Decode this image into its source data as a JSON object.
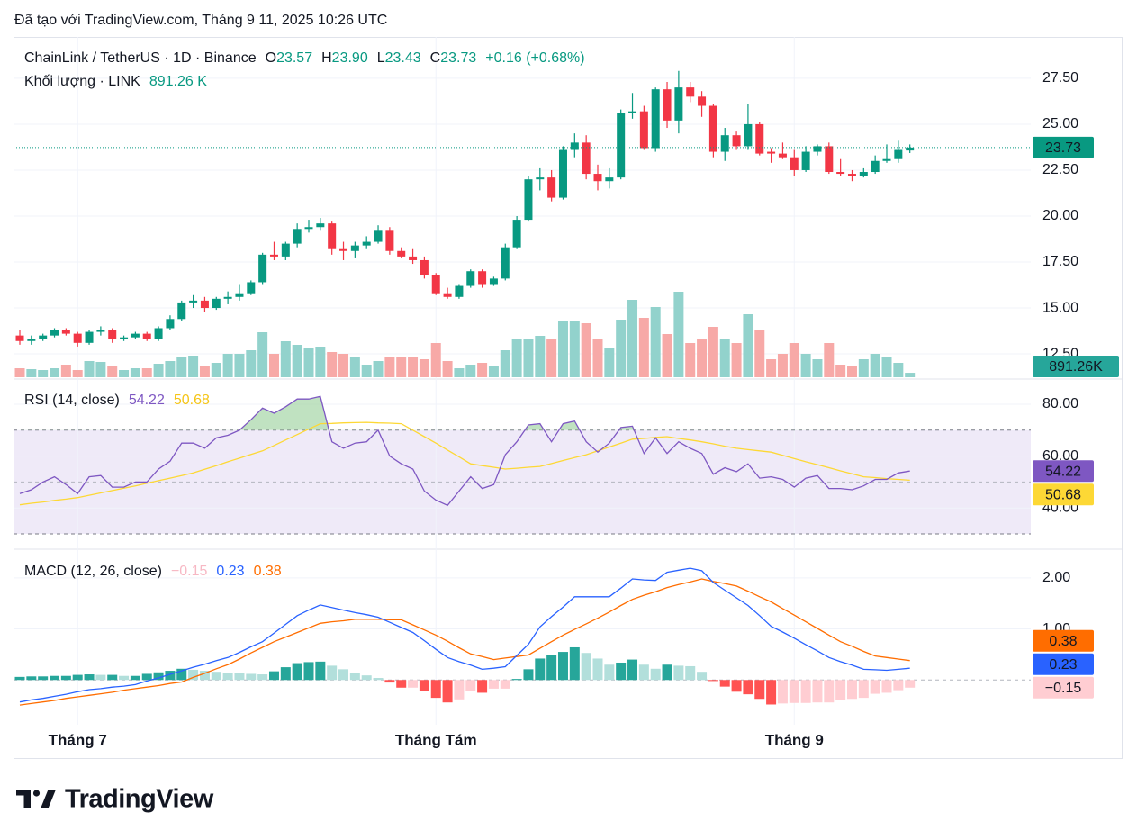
{
  "header": {
    "text": "Đã tạo với TradingView.com, Tháng 9 11, 2025 10:26 UTC"
  },
  "footer": {
    "logo": "TradingView"
  },
  "chart_data": {
    "type": "candlestick",
    "symbol": "ChainLink / TetherUS · 1D · Binance",
    "ohlc_letters": [
      "O",
      "H",
      "L",
      "C"
    ],
    "legend": {
      "open": "23.57",
      "high": "23.90",
      "low": "23.43",
      "close": "23.73",
      "change": "+0.16 (+0.68%)"
    },
    "categories": [
      null,
      null,
      null,
      null,
      null,
      "Tháng 7",
      null,
      null,
      null,
      null,
      null,
      null,
      null,
      null,
      null,
      null,
      null,
      null,
      null,
      null,
      null,
      null,
      null,
      null,
      null,
      null,
      null,
      null,
      null,
      null,
      null,
      null,
      null,
      null,
      null,
      null,
      "Tháng Tám",
      null,
      null,
      null,
      null,
      null,
      null,
      null,
      null,
      null,
      null,
      null,
      null,
      null,
      null,
      null,
      null,
      null,
      null,
      null,
      null,
      null,
      null,
      null,
      null,
      null,
      null,
      null,
      null,
      null,
      null,
      "Tháng 9",
      null,
      null,
      null,
      null,
      null,
      null,
      null,
      null,
      null,
      null
    ],
    "open": [
      13.5,
      13.2,
      13.3,
      13.5,
      13.8,
      13.6,
      13.1,
      13.7,
      13.8,
      13.3,
      13.4,
      13.6,
      13.3,
      13.9,
      14.4,
      15.3,
      15.4,
      15.0,
      15.5,
      15.6,
      15.8,
      16.4,
      17.9,
      17.8,
      18.5,
      19.3,
      19.4,
      19.6,
      18.2,
      18.1,
      18.4,
      18.6,
      19.2,
      18.1,
      17.8,
      17.6,
      16.8,
      15.8,
      15.6,
      16.2,
      17.0,
      16.3,
      16.6,
      18.3,
      19.8,
      22.0,
      22.1,
      21.0,
      23.6,
      24.0,
      22.3,
      21.9,
      22.1,
      25.6,
      25.7,
      23.7,
      26.9,
      25.2,
      27.0,
      26.5,
      26.0,
      23.5,
      24.4,
      23.8,
      25.0,
      23.5,
      23.4,
      23.2,
      22.5,
      23.5,
      23.8,
      22.4,
      22.3,
      22.2,
      22.4,
      23.0,
      23.1,
      23.57
    ],
    "high": [
      13.8,
      13.5,
      13.6,
      13.9,
      13.9,
      13.7,
      13.8,
      14.0,
      13.9,
      13.5,
      13.7,
      13.7,
      14.0,
      14.6,
      15.4,
      15.7,
      15.6,
      15.6,
      15.9,
      16.3,
      16.5,
      18.0,
      18.6,
      18.6,
      19.6,
      19.8,
      19.9,
      19.7,
      18.6,
      18.6,
      18.9,
      19.5,
      19.4,
      18.3,
      18.2,
      17.8,
      16.9,
      16.1,
      16.3,
      17.1,
      17.1,
      16.7,
      18.5,
      20.0,
      22.2,
      22.6,
      22.5,
      23.8,
      24.5,
      24.4,
      22.8,
      22.6,
      25.8,
      26.7,
      26.0,
      27.0,
      27.3,
      27.9,
      27.3,
      26.8,
      26.1,
      24.8,
      24.6,
      26.1,
      25.1,
      23.7,
      24.0,
      23.6,
      23.8,
      23.9,
      24.0,
      23.1,
      22.5,
      22.6,
      23.3,
      23.9,
      24.1,
      23.9
    ],
    "low": [
      13.0,
      13.0,
      13.2,
      13.4,
      13.5,
      12.9,
      13.0,
      13.5,
      13.1,
      13.2,
      13.3,
      13.2,
      13.2,
      13.8,
      14.3,
      15.0,
      14.8,
      14.9,
      15.2,
      15.4,
      15.7,
      16.3,
      17.6,
      17.6,
      18.3,
      19.1,
      19.2,
      17.9,
      17.6,
      17.7,
      18.2,
      18.5,
      17.9,
      17.7,
      17.4,
      16.6,
      15.7,
      15.5,
      15.5,
      16.1,
      16.1,
      16.2,
      16.5,
      18.2,
      19.7,
      21.4,
      20.8,
      20.9,
      23.2,
      22.0,
      21.4,
      21.5,
      22.0,
      25.3,
      23.6,
      23.5,
      24.8,
      24.5,
      26.2,
      25.4,
      23.2,
      23.0,
      23.6,
      23.6,
      23.3,
      22.9,
      23.1,
      22.2,
      22.4,
      23.3,
      22.3,
      22.2,
      21.9,
      22.1,
      22.3,
      22.9,
      22.9,
      23.43
    ],
    "close": [
      13.2,
      13.3,
      13.5,
      13.8,
      13.6,
      13.1,
      13.7,
      13.8,
      13.3,
      13.4,
      13.6,
      13.3,
      13.9,
      14.4,
      15.3,
      15.4,
      15.0,
      15.5,
      15.6,
      15.8,
      16.4,
      17.9,
      17.8,
      18.5,
      19.3,
      19.4,
      19.6,
      18.2,
      18.1,
      18.4,
      18.6,
      19.2,
      18.1,
      17.8,
      17.6,
      16.8,
      15.8,
      15.6,
      16.2,
      17.0,
      16.3,
      16.6,
      18.3,
      19.8,
      22.0,
      22.1,
      21.0,
      23.6,
      24.0,
      22.3,
      21.9,
      22.1,
      25.6,
      25.7,
      23.7,
      26.9,
      25.2,
      27.0,
      26.5,
      26.0,
      23.5,
      24.4,
      23.8,
      25.0,
      23.4,
      23.4,
      23.2,
      22.5,
      23.5,
      23.8,
      22.4,
      22.3,
      22.2,
      22.4,
      23.0,
      23.1,
      23.6,
      23.73
    ],
    "up_color": "#089981",
    "down_color": "#f23645",
    "ylim": [
      11.18,
      29.75
    ],
    "yticks": [
      {
        "value": 12.5,
        "label": "12.50"
      },
      {
        "value": 15,
        "label": "15.00"
      },
      {
        "value": 17.5,
        "label": "17.50"
      },
      {
        "value": 20,
        "label": "20.00"
      },
      {
        "value": 22.5,
        "label": "22.50"
      },
      {
        "value": 25,
        "label": "25.00"
      },
      {
        "value": 27.5,
        "label": "27.50"
      }
    ],
    "grid": true,
    "last_price_line": true,
    "volume": {
      "title": "Khối lượng · LINK",
      "legend_label": "891.26 K",
      "badge_label": "891.26K",
      "values": [
        1800000,
        1620000,
        1440000,
        1800000,
        2520000,
        1440000,
        3240000,
        3060000,
        2160000,
        1440000,
        1800000,
        1800000,
        2700000,
        3240000,
        3960000,
        4320000,
        2160000,
        2880000,
        4680000,
        4680000,
        5400000,
        9000000,
        4680000,
        7200000,
        6480000,
        5760000,
        6120000,
        5040000,
        4680000,
        3960000,
        2520000,
        3240000,
        3960000,
        3960000,
        3960000,
        3600000,
        6840000,
        3240000,
        1800000,
        2520000,
        2880000,
        2160000,
        5400000,
        7560000,
        7560000,
        8280000,
        7560000,
        11160000,
        11160000,
        10800000,
        7560000,
        5760000,
        11520000,
        15480000,
        11880000,
        14040000,
        8640000,
        17100000,
        6840000,
        7560000,
        10080000,
        7560000,
        6840000,
        12600000,
        9360000,
        3600000,
        4680000,
        6840000,
        4680000,
        3600000,
        6840000,
        2520000,
        2160000,
        3600000,
        4680000,
        3960000,
        2880000,
        891260
      ],
      "up_color": "#92d2cc",
      "down_color": "#f7a9a7",
      "badge_color": "#26a69a"
    },
    "rsi": {
      "title": "RSI (14, close)",
      "values": [
        45.5,
        47,
        50,
        52,
        49,
        45.5,
        52,
        52.5,
        48,
        48,
        50,
        50,
        55,
        58,
        65,
        65,
        63,
        67,
        68,
        70,
        74,
        78.5,
        76.5,
        79,
        82,
        82,
        83,
        65.5,
        63,
        65,
        65.5,
        70,
        60,
        57,
        55,
        46.5,
        43,
        41,
        46.5,
        52,
        47.5,
        49,
        60.5,
        65.5,
        72,
        72.5,
        65.5,
        72.5,
        73.5,
        65.5,
        61.5,
        65,
        71,
        71.5,
        61,
        67,
        61,
        65.5,
        63,
        61,
        53,
        55.5,
        54,
        57,
        51.5,
        52,
        51,
        48,
        51.5,
        52.5,
        47.5,
        47.5,
        47,
        48.5,
        51,
        51,
        53.5,
        54.22
      ],
      "ma_values": [
        41.2,
        41.8,
        42.3,
        42.9,
        43.4,
        44,
        44.9,
        45.8,
        46.7,
        47.6,
        48.5,
        49.5,
        50.5,
        51.5,
        52.5,
        53.5,
        54.9,
        56.3,
        57.8,
        59.2,
        60.6,
        62,
        64.1,
        66.2,
        68.3,
        70.4,
        72.5,
        72.6,
        72.8,
        72.9,
        73,
        72.8,
        72.7,
        72.5,
        70,
        67.5,
        65,
        62.3,
        59.7,
        57,
        56.3,
        55.7,
        55,
        55.3,
        55.7,
        56,
        57.1,
        58.3,
        59.4,
        60.5,
        62,
        63.5,
        65,
        66.5,
        66.8,
        67.2,
        67.5,
        66.8,
        66.2,
        65.5,
        64.7,
        63.8,
        63,
        62.5,
        62,
        61.5,
        60.3,
        59,
        57.8,
        56.7,
        55.5,
        54.3,
        53.2,
        52,
        51.7,
        51.3,
        51,
        50.68
      ],
      "color": "#7e57c2",
      "ma_color": "#fdd835",
      "band_color": "#efeaf8",
      "overbought_color": "#a5d6a7",
      "ylim": [
        24.1,
        89.7
      ],
      "yticks": [
        {
          "value": 40,
          "label": "40.00"
        },
        {
          "value": 60,
          "label": "60.00"
        },
        {
          "value": 80,
          "label": "80.00"
        }
      ],
      "bands": [
        30,
        70
      ],
      "midline": 50
    },
    "macd": {
      "title": "MACD (12, 26, close)",
      "macd": [
        -0.43,
        -0.39,
        -0.36,
        -0.32,
        -0.28,
        -0.23,
        -0.19,
        -0.17,
        -0.14,
        -0.12,
        -0.09,
        -0.02,
        0.04,
        0.11,
        0.18,
        0.25,
        0.31,
        0.38,
        0.44,
        0.54,
        0.65,
        0.75,
        0.92,
        1.09,
        1.26,
        1.37,
        1.47,
        1.42,
        1.37,
        1.32,
        1.28,
        1.23,
        1.13,
        1.03,
        0.93,
        0.77,
        0.6,
        0.44,
        0.36,
        0.29,
        0.21,
        0.23,
        0.26,
        0.48,
        0.7,
        1.04,
        1.24,
        1.43,
        1.63,
        1.63,
        1.63,
        1.63,
        1.8,
        1.98,
        1.96,
        1.95,
        2.11,
        2.15,
        2.19,
        2.14,
        1.91,
        1.76,
        1.61,
        1.46,
        1.26,
        1.05,
        0.94,
        0.82,
        0.69,
        0.57,
        0.44,
        0.36,
        0.29,
        0.21,
        0.2,
        0.19,
        0.21,
        0.23
      ],
      "signal": [
        -0.49,
        -0.46,
        -0.43,
        -0.4,
        -0.36,
        -0.33,
        -0.3,
        -0.27,
        -0.24,
        -0.2,
        -0.17,
        -0.14,
        -0.11,
        -0.07,
        -0.04,
        0.05,
        0.13,
        0.22,
        0.3,
        0.41,
        0.53,
        0.64,
        0.75,
        0.84,
        0.93,
        1.02,
        1.11,
        1.14,
        1.16,
        1.19,
        1.19,
        1.19,
        1.18,
        1.18,
        1.08,
        0.98,
        0.88,
        0.76,
        0.63,
        0.51,
        0.46,
        0.4,
        0.43,
        0.46,
        0.49,
        0.62,
        0.75,
        0.88,
        0.99,
        1.1,
        1.21,
        1.33,
        1.46,
        1.58,
        1.66,
        1.73,
        1.81,
        1.87,
        1.92,
        1.98,
        1.93,
        1.89,
        1.84,
        1.74,
        1.63,
        1.53,
        1.4,
        1.27,
        1.14,
        1.01,
        0.88,
        0.75,
        0.66,
        0.56,
        0.47,
        0.44,
        0.41,
        0.38
      ],
      "histogram": [
        0.06,
        0.07,
        0.07,
        0.08,
        0.08,
        0.1,
        0.11,
        0.1,
        0.1,
        0.08,
        0.08,
        0.12,
        0.15,
        0.18,
        0.22,
        0.2,
        0.18,
        0.16,
        0.14,
        0.13,
        0.12,
        0.11,
        0.17,
        0.25,
        0.33,
        0.35,
        0.36,
        0.28,
        0.21,
        0.13,
        0.09,
        0.04,
        -0.05,
        -0.15,
        -0.15,
        -0.21,
        -0.35,
        -0.44,
        -0.38,
        -0.22,
        -0.25,
        -0.17,
        -0.17,
        0.02,
        0.21,
        0.42,
        0.49,
        0.55,
        0.64,
        0.53,
        0.42,
        0.3,
        0.34,
        0.4,
        0.3,
        0.22,
        0.3,
        0.28,
        0.27,
        0.16,
        -0.02,
        -0.13,
        -0.23,
        -0.28,
        -0.37,
        -0.48,
        -0.46,
        -0.45,
        -0.45,
        -0.44,
        -0.44,
        -0.39,
        -0.37,
        -0.35,
        -0.27,
        -0.25,
        -0.2,
        -0.15
      ],
      "histogram_last_label": "−0.15",
      "macd_color": "#2962ff",
      "signal_color": "#ff6d00",
      "histogram_colors": [
        "#26a69a",
        "#b2dfdb",
        "#ffcdd2",
        "#ff5252"
      ],
      "ylim": [
        -0.877,
        2.544
      ],
      "yticks": [
        {
          "value": 1,
          "label": "1.00"
        },
        {
          "value": 2,
          "label": "2.00"
        }
      ],
      "zero_line": 0
    }
  }
}
